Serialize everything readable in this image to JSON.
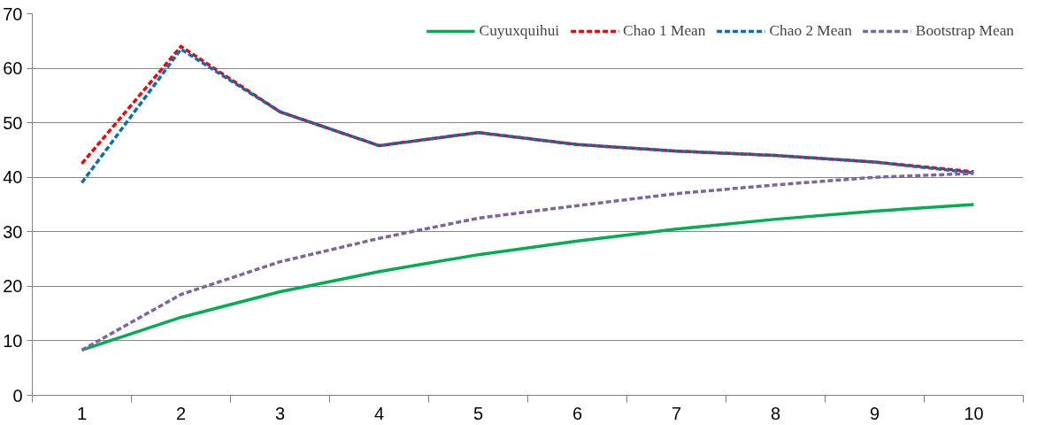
{
  "chart_data": {
    "type": "line",
    "categories": [
      "1",
      "2",
      "3",
      "4",
      "5",
      "6",
      "7",
      "8",
      "9",
      "10"
    ],
    "ylim": [
      0,
      70
    ],
    "yticks": [
      0,
      10,
      20,
      30,
      40,
      50,
      60,
      70
    ],
    "grid": "y",
    "legend": "top right",
    "marker": "none",
    "series": [
      {
        "name": "Cuyuxquihui",
        "color": "#00b050",
        "line_style": "solid",
        "values": [
          8.3,
          14.3,
          19,
          22.7,
          25.8,
          28.3,
          30.5,
          32.3,
          33.8,
          35
        ]
      },
      {
        "name": "Chao 1 Mean",
        "color": "#ff0000",
        "line_style": "dashed",
        "values": [
          42.5,
          64,
          52,
          45.8,
          48.2,
          46,
          44.8,
          44,
          42.8,
          41
        ]
      },
      {
        "name": "Chao 2 Mean",
        "color": "#0070c0",
        "line_style": "dashed",
        "values": [
          39,
          63.5,
          52,
          45.8,
          48.2,
          46,
          44.8,
          44,
          42.8,
          40.8
        ]
      },
      {
        "name": "Bootstrap Mean",
        "color": "#8064a2",
        "line_style": "dashed",
        "values": [
          8.3,
          18.5,
          24.5,
          28.8,
          32.5,
          34.8,
          37,
          38.6,
          40,
          40.7
        ]
      }
    ]
  }
}
